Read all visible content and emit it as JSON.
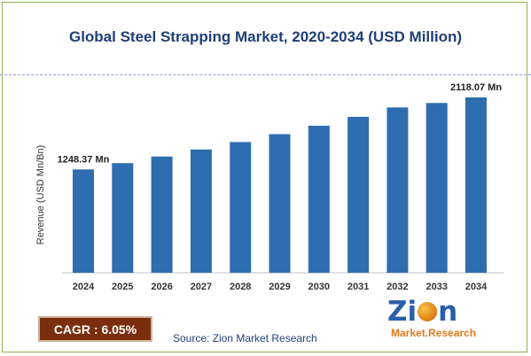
{
  "title": "Global Steel Strapping Market, 2020-2034 (USD Million)",
  "chart_data": {
    "type": "bar",
    "categories": [
      "2024",
      "2025",
      "2026",
      "2027",
      "2028",
      "2029",
      "2030",
      "2031",
      "2032",
      "2033",
      "2034"
    ],
    "values": [
      1248.37,
      1323.9,
      1404.0,
      1488.9,
      1579.0,
      1674.5,
      1775.8,
      1883.2,
      1997.2,
      2051.0,
      2118.07
    ],
    "ylabel": "Revenue (USD Mn/Bn)",
    "ylim": [
      0,
      2118.07
    ],
    "grid": false,
    "bar_color": "#2e6db0",
    "data_labels": [
      {
        "index": 0,
        "text": "1248.37 Mn"
      },
      {
        "index": 10,
        "text": "2118.07 Mn"
      }
    ]
  },
  "cagr": "CAGR : 6.05%",
  "source": "Source: Zion Market Research",
  "logo": {
    "top": "Zion",
    "bottom": "Market.Research"
  }
}
